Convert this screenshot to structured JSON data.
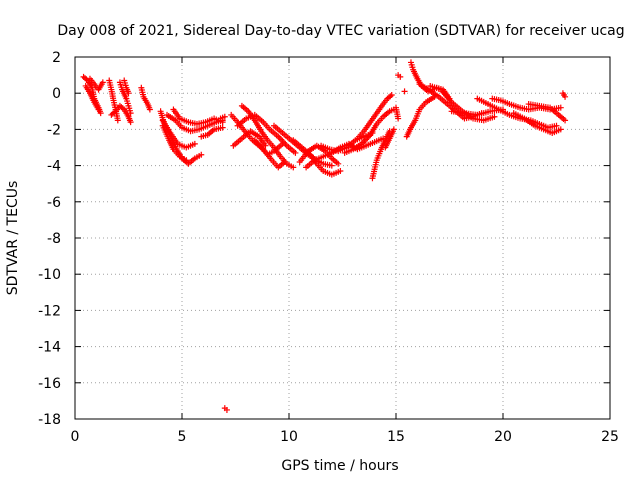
{
  "chart_data": {
    "type": "scatter",
    "title": "Day 008 of 2021, Sidereal Day-to-day VTEC variation (SDTVAR) for receiver ucag",
    "xlabel": "GPS time / hours",
    "ylabel": "SDTVAR / TECUs",
    "xlim": [
      0,
      25
    ],
    "ylim": [
      -18,
      2
    ],
    "xticks": [
      "0",
      "5",
      "10",
      "15",
      "20",
      "25"
    ],
    "yticks": [
      "2",
      "0",
      "-2",
      "-4",
      "-6",
      "-8",
      "-10",
      "-12",
      "-14",
      "-16",
      "-18"
    ],
    "grid": true,
    "marker": "+",
    "series": [
      {
        "name": "SDTVAR",
        "color": "#ff0000",
        "tracks": [
          [
            [
              0.4,
              0.9
            ],
            [
              0.6,
              0.7
            ],
            [
              0.8,
              0.3
            ],
            [
              0.9,
              -0.3
            ],
            [
              1.1,
              -0.8
            ],
            [
              1.2,
              -1.1
            ]
          ],
          [
            [
              0.5,
              0.4
            ],
            [
              0.7,
              0.0
            ],
            [
              0.9,
              -0.5
            ],
            [
              1.1,
              -0.9
            ]
          ],
          [
            [
              0.7,
              0.8
            ],
            [
              0.9,
              0.5
            ],
            [
              1.1,
              0.2
            ],
            [
              1.3,
              0.6
            ]
          ],
          [
            [
              1.6,
              0.7
            ],
            [
              1.7,
              0.2
            ],
            [
              1.8,
              -0.4
            ],
            [
              1.9,
              -0.9
            ],
            [
              2.0,
              -1.5
            ]
          ],
          [
            [
              1.7,
              -1.2
            ],
            [
              1.9,
              -1.0
            ],
            [
              2.1,
              -0.7
            ],
            [
              2.3,
              -0.9
            ],
            [
              2.5,
              -1.3
            ],
            [
              2.6,
              -1.6
            ]
          ],
          [
            [
              2.1,
              0.6
            ],
            [
              2.2,
              0.2
            ],
            [
              2.4,
              -0.3
            ],
            [
              2.5,
              -0.7
            ],
            [
              2.6,
              -1.1
            ]
          ],
          [
            [
              2.3,
              0.7
            ],
            [
              2.4,
              0.3
            ],
            [
              2.5,
              0.0
            ]
          ],
          [
            [
              3.1,
              0.3
            ],
            [
              3.2,
              -0.2
            ],
            [
              3.4,
              -0.6
            ],
            [
              3.5,
              -0.9
            ]
          ],
          [
            [
              4.0,
              -1.0
            ],
            [
              4.2,
              -1.8
            ],
            [
              4.5,
              -2.5
            ],
            [
              4.8,
              -3.2
            ],
            [
              5.0,
              -3.6
            ],
            [
              5.3,
              -3.9
            ],
            [
              5.6,
              -3.6
            ],
            [
              5.9,
              -3.4
            ]
          ],
          [
            [
              4.1,
              -1.5
            ],
            [
              4.4,
              -2.1
            ],
            [
              4.8,
              -2.8
            ],
            [
              5.2,
              -3.0
            ],
            [
              5.6,
              -2.8
            ]
          ],
          [
            [
              4.1,
              -1.8
            ],
            [
              4.4,
              -2.6
            ],
            [
              4.6,
              -3.1
            ],
            [
              4.9,
              -3.5
            ],
            [
              5.2,
              -3.7
            ]
          ],
          [
            [
              4.3,
              -1.2
            ],
            [
              4.7,
              -1.5
            ],
            [
              5.0,
              -1.9
            ],
            [
              5.4,
              -2.1
            ],
            [
              5.8,
              -2.0
            ],
            [
              6.2,
              -1.8
            ],
            [
              6.6,
              -1.6
            ],
            [
              6.9,
              -1.5
            ]
          ],
          [
            [
              4.6,
              -0.9
            ],
            [
              4.9,
              -1.4
            ],
            [
              5.3,
              -1.6
            ],
            [
              5.7,
              -1.7
            ],
            [
              6.1,
              -1.6
            ],
            [
              6.5,
              -1.4
            ],
            [
              6.9,
              -1.6
            ]
          ],
          [
            [
              5.9,
              -2.4
            ],
            [
              6.2,
              -2.3
            ],
            [
              6.5,
              -2.0
            ],
            [
              6.9,
              -1.9
            ]
          ],
          [
            [
              6.8,
              -1.4
            ],
            [
              7.0,
              -1.3
            ]
          ],
          [
            [
              7.3,
              -1.2
            ],
            [
              7.6,
              -1.6
            ],
            [
              8.0,
              -2.2
            ],
            [
              8.3,
              -2.6
            ],
            [
              8.7,
              -3.0
            ],
            [
              9.0,
              -3.4
            ],
            [
              9.3,
              -3.2
            ],
            [
              9.7,
              -2.8
            ]
          ],
          [
            [
              7.4,
              -2.9
            ],
            [
              7.8,
              -2.5
            ],
            [
              8.2,
              -2.1
            ],
            [
              8.6,
              -2.4
            ],
            [
              8.9,
              -2.9
            ]
          ],
          [
            [
              7.6,
              -1.8
            ],
            [
              8.0,
              -1.4
            ],
            [
              8.4,
              -1.2
            ],
            [
              8.8,
              -1.6
            ],
            [
              9.1,
              -2.0
            ],
            [
              9.5,
              -2.4
            ],
            [
              9.9,
              -2.9
            ],
            [
              10.3,
              -3.3
            ]
          ],
          [
            [
              7.8,
              -0.7
            ],
            [
              8.1,
              -1.0
            ],
            [
              8.4,
              -1.5
            ],
            [
              8.7,
              -2.1
            ],
            [
              9.0,
              -2.6
            ],
            [
              9.3,
              -3.0
            ],
            [
              9.6,
              -3.5
            ],
            [
              9.9,
              -3.9
            ],
            [
              10.2,
              -4.1
            ]
          ],
          [
            [
              8.4,
              -2.6
            ],
            [
              8.8,
              -3.1
            ],
            [
              9.2,
              -3.7
            ],
            [
              9.5,
              -4.1
            ],
            [
              9.8,
              -3.8
            ]
          ],
          [
            [
              9.3,
              -1.8
            ],
            [
              9.7,
              -2.2
            ],
            [
              10.1,
              -2.6
            ],
            [
              10.5,
              -3.0
            ],
            [
              10.9,
              -3.4
            ],
            [
              11.3,
              -3.7
            ],
            [
              11.6,
              -3.9
            ],
            [
              12.0,
              -4.0
            ]
          ],
          [
            [
              10.2,
              -2.6
            ],
            [
              10.6,
              -3.0
            ],
            [
              11.0,
              -3.4
            ],
            [
              11.3,
              -3.9
            ],
            [
              11.6,
              -4.3
            ],
            [
              12.0,
              -4.5
            ],
            [
              12.4,
              -4.3
            ]
          ],
          [
            [
              10.5,
              -3.8
            ],
            [
              10.9,
              -3.2
            ],
            [
              11.3,
              -2.9
            ],
            [
              11.7,
              -3.2
            ],
            [
              12.0,
              -3.6
            ],
            [
              12.3,
              -3.9
            ]
          ],
          [
            [
              10.8,
              -4.1
            ],
            [
              11.2,
              -3.7
            ],
            [
              11.6,
              -3.5
            ],
            [
              12.0,
              -3.3
            ],
            [
              12.4,
              -3.0
            ],
            [
              12.8,
              -2.8
            ],
            [
              13.2,
              -3.1
            ],
            [
              13.6,
              -2.9
            ],
            [
              14.0,
              -2.7
            ],
            [
              14.4,
              -2.5
            ]
          ],
          [
            [
              11.5,
              -2.9
            ],
            [
              11.9,
              -3.1
            ],
            [
              12.3,
              -3.2
            ],
            [
              12.7,
              -3.0
            ],
            [
              13.1,
              -2.6
            ],
            [
              13.5,
              -2.4
            ],
            [
              13.9,
              -2.2
            ]
          ],
          [
            [
              12.6,
              -3.3
            ],
            [
              13.0,
              -3.1
            ],
            [
              13.4,
              -2.8
            ],
            [
              13.8,
              -2.3
            ],
            [
              14.1,
              -1.7
            ],
            [
              14.4,
              -1.3
            ],
            [
              14.7,
              -1.0
            ],
            [
              14.9,
              -0.9
            ]
          ],
          [
            [
              13.2,
              -2.5
            ],
            [
              13.5,
              -2.1
            ],
            [
              13.8,
              -1.6
            ],
            [
              14.1,
              -1.1
            ],
            [
              14.4,
              -0.6
            ],
            [
              14.6,
              -0.3
            ],
            [
              14.8,
              -0.1
            ]
          ],
          [
            [
              13.9,
              -4.7
            ],
            [
              14.0,
              -4.2
            ],
            [
              14.1,
              -3.7
            ],
            [
              14.3,
              -3.1
            ],
            [
              14.5,
              -2.6
            ],
            [
              14.7,
              -2.1
            ]
          ],
          [
            [
              14.5,
              -3.0
            ],
            [
              14.7,
              -2.5
            ],
            [
              14.9,
              -2.0
            ]
          ],
          [
            [
              15.1,
              1.0
            ],
            [
              15.2,
              0.9
            ]
          ],
          [
            [
              15.0,
              -0.8
            ],
            [
              15.1,
              -1.4
            ]
          ],
          [
            [
              15.4,
              0.1
            ]
          ],
          [
            [
              15.5,
              -2.4
            ],
            [
              15.7,
              -1.9
            ],
            [
              15.9,
              -1.5
            ],
            [
              16.1,
              -0.9
            ],
            [
              16.4,
              -0.5
            ],
            [
              16.8,
              -0.2
            ]
          ],
          [
            [
              15.7,
              1.7
            ],
            [
              15.8,
              1.3
            ],
            [
              16.0,
              0.8
            ],
            [
              16.2,
              0.4
            ],
            [
              16.5,
              0.1
            ],
            [
              16.9,
              0.3
            ],
            [
              17.2,
              0.2
            ],
            [
              17.5,
              -0.3
            ]
          ],
          [
            [
              16.1,
              0.5
            ],
            [
              16.5,
              0.2
            ],
            [
              17.0,
              -0.2
            ],
            [
              17.4,
              -0.6
            ],
            [
              17.8,
              -1.0
            ],
            [
              18.2,
              -1.4
            ],
            [
              18.6,
              -1.3
            ],
            [
              19.0,
              -1.1
            ]
          ],
          [
            [
              16.6,
              0.4
            ],
            [
              17.1,
              0.2
            ],
            [
              17.6,
              -0.5
            ],
            [
              18.1,
              -1.0
            ],
            [
              18.6,
              -1.4
            ],
            [
              19.1,
              -1.5
            ],
            [
              19.6,
              -1.3
            ]
          ],
          [
            [
              17.6,
              -1.0
            ],
            [
              18.2,
              -1.1
            ],
            [
              18.8,
              -1.2
            ],
            [
              19.4,
              -1.0
            ],
            [
              20.0,
              -0.9
            ]
          ],
          [
            [
              18.8,
              -0.3
            ],
            [
              19.3,
              -0.6
            ],
            [
              19.8,
              -0.9
            ],
            [
              20.3,
              -1.2
            ],
            [
              20.8,
              -1.4
            ],
            [
              21.3,
              -1.5
            ],
            [
              21.7,
              -1.7
            ],
            [
              22.1,
              -1.9
            ],
            [
              22.5,
              -1.8
            ]
          ],
          [
            [
              19.5,
              -0.3
            ],
            [
              19.9,
              -0.4
            ],
            [
              20.3,
              -0.6
            ],
            [
              20.8,
              -0.8
            ],
            [
              21.2,
              -0.9
            ],
            [
              21.7,
              -0.8
            ],
            [
              22.2,
              -0.9
            ],
            [
              22.7,
              -0.8
            ]
          ],
          [
            [
              20.5,
              -1.1
            ],
            [
              21.0,
              -1.4
            ],
            [
              21.5,
              -1.8
            ],
            [
              21.9,
              -2.0
            ],
            [
              22.3,
              -2.2
            ],
            [
              22.7,
              -2.0
            ]
          ],
          [
            [
              21.2,
              -0.6
            ],
            [
              21.7,
              -0.7
            ],
            [
              22.2,
              -0.8
            ],
            [
              22.6,
              -1.2
            ],
            [
              22.9,
              -1.5
            ]
          ],
          [
            [
              22.8,
              0.0
            ],
            [
              22.9,
              -0.2
            ]
          ],
          [
            [
              7.0,
              -17.4
            ],
            [
              7.1,
              -17.5
            ]
          ]
        ]
      }
    ]
  }
}
